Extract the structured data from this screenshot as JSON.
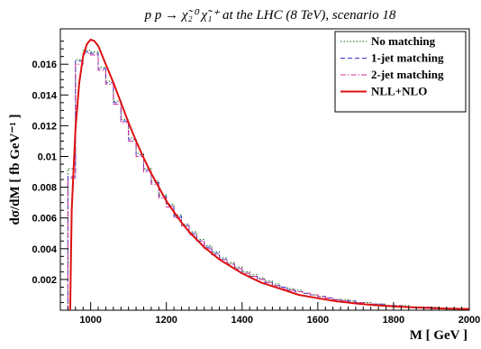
{
  "chart_data": {
    "type": "line",
    "title": "p p → χ̃₂⁰ χ̃₁⁺ at the LHC (8 TeV), scenario 18",
    "xlabel": "M [ GeV ]",
    "ylabel": "dσ/dM [ fb GeV⁻¹ ]",
    "xlim": [
      920,
      2000
    ],
    "ylim": [
      0,
      0.0183
    ],
    "x_ticks": [
      1000,
      1200,
      1400,
      1600,
      1800,
      2000
    ],
    "x_tick_labels": [
      "1000",
      "1200",
      "1400",
      "1600",
      "1800",
      "2000"
    ],
    "y_ticks": [
      0.002,
      0.004,
      0.006,
      0.008,
      0.01,
      0.012,
      0.014,
      0.016
    ],
    "y_tick_labels": [
      "0.002",
      "0.004",
      "0.006",
      "0.008",
      "0.01",
      "0.012",
      "0.014",
      "0.016"
    ],
    "grid": false,
    "legend_position": "top-right",
    "bin_edges": [
      940,
      960,
      980,
      1000,
      1020,
      1040,
      1060,
      1080,
      1100,
      1120,
      1140,
      1160,
      1180,
      1200,
      1220,
      1240,
      1260,
      1280,
      1300,
      1320,
      1340,
      1360,
      1380,
      1400,
      1420,
      1440,
      1460,
      1480,
      1500,
      1520,
      1540,
      1560,
      1580,
      1600,
      1620,
      1640,
      1660,
      1680,
      1700,
      1720,
      1740,
      1760,
      1780,
      1800,
      1820,
      1840,
      1860,
      1880,
      1900,
      1920,
      1940,
      1960,
      1980,
      2000
    ],
    "series": [
      {
        "name": "No matching",
        "kind": "histogram",
        "color": "#006400",
        "dash": "1.5,2",
        "values": [
          0.0092,
          0.0163,
          0.0169,
          0.0168,
          0.0158,
          0.0149,
          0.0136,
          0.0124,
          0.0112,
          0.0102,
          0.0092,
          0.0084,
          0.0075,
          0.0069,
          0.0062,
          0.0056,
          0.0051,
          0.0046,
          0.0042,
          0.0038,
          0.0034,
          0.0031,
          0.0028,
          0.0025,
          0.0023,
          0.0021,
          0.0019,
          0.0017,
          0.0015,
          0.0014,
          0.0013,
          0.0011,
          0.001,
          0.0009,
          0.0008,
          0.0007,
          0.0007,
          0.0006,
          0.0005,
          0.0005,
          0.0004,
          0.0004,
          0.0003,
          0.0003,
          0.0003,
          0.0002,
          0.0002,
          0.0002,
          0.0002,
          0.0001,
          0.0001,
          0.0001,
          0.0001
        ]
      },
      {
        "name": "1-jet matching",
        "kind": "histogram",
        "color": "#3333cc",
        "dash": "5,3",
        "values": [
          0.0087,
          0.0162,
          0.0168,
          0.0167,
          0.0157,
          0.0148,
          0.0135,
          0.0123,
          0.0111,
          0.0101,
          0.0091,
          0.0083,
          0.0074,
          0.0068,
          0.0061,
          0.0055,
          0.005,
          0.0045,
          0.0041,
          0.0037,
          0.0033,
          0.003,
          0.0027,
          0.0024,
          0.0022,
          0.002,
          0.0018,
          0.0016,
          0.0015,
          0.0013,
          0.0012,
          0.0011,
          0.001,
          0.0009,
          0.0008,
          0.0007,
          0.0006,
          0.0006,
          0.0005,
          0.0004,
          0.0004,
          0.0004,
          0.0003,
          0.0003,
          0.0002,
          0.0002,
          0.0002,
          0.0002,
          0.0001,
          0.0001,
          0.0001,
          0.0001,
          0.0001
        ]
      },
      {
        "name": "2-jet matching",
        "kind": "histogram",
        "color": "#cc3399",
        "dash": "6,2,1.5,2",
        "values": [
          0.0086,
          0.016,
          0.0167,
          0.0166,
          0.0156,
          0.0147,
          0.0134,
          0.0122,
          0.011,
          0.01,
          0.009,
          0.0082,
          0.0073,
          0.0067,
          0.006,
          0.0055,
          0.0049,
          0.0045,
          0.004,
          0.0036,
          0.0033,
          0.003,
          0.0027,
          0.0024,
          0.0022,
          0.002,
          0.0018,
          0.0016,
          0.0014,
          0.0013,
          0.0012,
          0.0011,
          0.001,
          0.0009,
          0.0008,
          0.0007,
          0.0006,
          0.0005,
          0.0005,
          0.0004,
          0.0004,
          0.0003,
          0.0003,
          0.0003,
          0.0002,
          0.0002,
          0.0002,
          0.0002,
          0.0001,
          0.0001,
          0.0001,
          0.0001,
          0.0001
        ]
      },
      {
        "name": "NLL+NLO",
        "kind": "curve",
        "color": "#dd1111",
        "x": [
          946,
          950,
          960,
          970,
          980,
          990,
          1000,
          1010,
          1020,
          1030,
          1040,
          1060,
          1080,
          1100,
          1120,
          1140,
          1160,
          1180,
          1200,
          1220,
          1240,
          1260,
          1280,
          1300,
          1320,
          1340,
          1360,
          1380,
          1400,
          1450,
          1500,
          1550,
          1600,
          1650,
          1700,
          1750,
          1800,
          1850,
          1900,
          1950,
          2000
        ],
        "y": [
          0.0,
          0.0065,
          0.0118,
          0.0148,
          0.0165,
          0.0173,
          0.0176,
          0.0175,
          0.0172,
          0.0166,
          0.016,
          0.0148,
          0.0135,
          0.0122,
          0.011,
          0.0099,
          0.0089,
          0.008,
          0.0071,
          0.0064,
          0.0057,
          0.0051,
          0.0046,
          0.0041,
          0.0037,
          0.0033,
          0.003,
          0.0027,
          0.0024,
          0.0018,
          0.0014,
          0.001,
          0.00078,
          0.00058,
          0.00044,
          0.00033,
          0.00025,
          0.00019,
          0.00014,
          0.0001,
          8e-05
        ]
      }
    ]
  }
}
